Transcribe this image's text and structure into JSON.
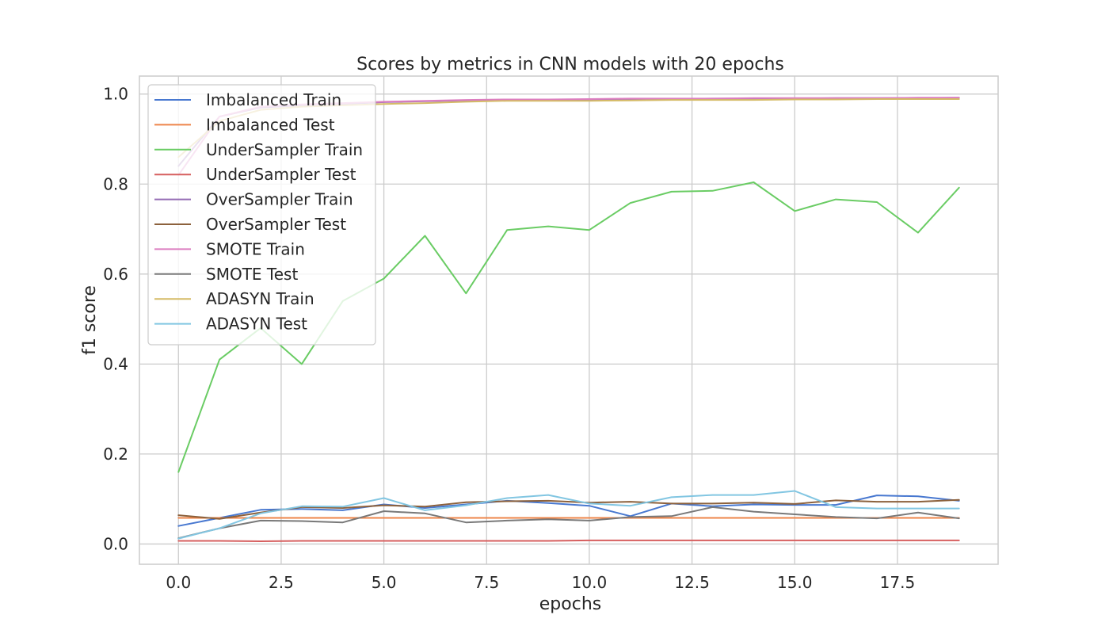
{
  "chart_data": {
    "type": "line",
    "title": "Scores by metrics in CNN models with 20 epochs",
    "xlabel": "epochs",
    "ylabel": "f1 score",
    "xlim": [
      -0.95,
      19.95
    ],
    "ylim": [
      -0.045,
      1.04
    ],
    "xticks": [
      0.0,
      2.5,
      5.0,
      7.5,
      10.0,
      12.5,
      15.0,
      17.5
    ],
    "xtick_labels": [
      "0.0",
      "2.5",
      "5.0",
      "7.5",
      "10.0",
      "12.5",
      "15.0",
      "17.5"
    ],
    "yticks": [
      0.0,
      0.2,
      0.4,
      0.6,
      0.8,
      1.0
    ],
    "ytick_labels": [
      "0.0",
      "0.2",
      "0.4",
      "0.6",
      "0.8",
      "1.0"
    ],
    "grid": true,
    "legend_position": "upper-left",
    "x": [
      0,
      1,
      2,
      3,
      4,
      5,
      6,
      7,
      8,
      9,
      10,
      11,
      12,
      13,
      14,
      15,
      16,
      17,
      18,
      19
    ],
    "series": [
      {
        "name": "Imbalanced Train",
        "color": "#4878d0",
        "values": [
          0.04,
          0.058,
          0.076,
          0.078,
          0.075,
          0.088,
          0.08,
          0.088,
          0.096,
          0.091,
          0.085,
          0.062,
          0.09,
          0.084,
          0.088,
          0.087,
          0.087,
          0.108,
          0.106,
          0.096
        ]
      },
      {
        "name": "Imbalanced Test",
        "color": "#ee854a",
        "values": [
          0.058,
          0.058,
          0.058,
          0.058,
          0.058,
          0.058,
          0.058,
          0.058,
          0.058,
          0.058,
          0.058,
          0.058,
          0.058,
          0.058,
          0.058,
          0.058,
          0.058,
          0.058,
          0.058,
          0.058
        ]
      },
      {
        "name": "UnderSampler Train",
        "color": "#6acc64",
        "values": [
          0.16,
          0.41,
          0.48,
          0.4,
          0.54,
          0.59,
          0.685,
          0.557,
          0.698,
          0.706,
          0.698,
          0.758,
          0.783,
          0.785,
          0.804,
          0.74,
          0.766,
          0.76,
          0.692,
          0.792
        ]
      },
      {
        "name": "UnderSampler Test",
        "color": "#d65f5f",
        "values": [
          0.007,
          0.007,
          0.006,
          0.007,
          0.007,
          0.007,
          0.007,
          0.007,
          0.007,
          0.007,
          0.008,
          0.008,
          0.008,
          0.008,
          0.008,
          0.008,
          0.008,
          0.008,
          0.008,
          0.008
        ]
      },
      {
        "name": "OverSampler Train",
        "color": "#956cb4",
        "values": [
          0.84,
          0.95,
          0.97,
          0.975,
          0.978,
          0.982,
          0.984,
          0.986,
          0.987,
          0.988,
          0.988,
          0.989,
          0.989,
          0.99,
          0.99,
          0.99,
          0.991,
          0.991,
          0.991,
          0.992
        ]
      },
      {
        "name": "OverSampler Test",
        "color": "#8c613c",
        "values": [
          0.064,
          0.056,
          0.07,
          0.082,
          0.08,
          0.086,
          0.083,
          0.093,
          0.095,
          0.096,
          0.092,
          0.094,
          0.09,
          0.09,
          0.092,
          0.089,
          0.097,
          0.094,
          0.094,
          0.098
        ]
      },
      {
        "name": "SMOTE Train",
        "color": "#dc7ec0",
        "values": [
          0.82,
          0.95,
          0.972,
          0.977,
          0.98,
          0.983,
          0.985,
          0.987,
          0.988,
          0.988,
          0.989,
          0.99,
          0.99,
          0.99,
          0.991,
          0.991,
          0.991,
          0.991,
          0.992,
          0.992
        ]
      },
      {
        "name": "SMOTE Test",
        "color": "#797979",
        "values": [
          0.013,
          0.035,
          0.052,
          0.051,
          0.048,
          0.073,
          0.068,
          0.048,
          0.052,
          0.055,
          0.052,
          0.06,
          0.062,
          0.082,
          0.072,
          0.066,
          0.06,
          0.057,
          0.07,
          0.057
        ]
      },
      {
        "name": "ADASYN Train",
        "color": "#d5bb67",
        "values": [
          0.86,
          0.94,
          0.965,
          0.972,
          0.975,
          0.978,
          0.98,
          0.983,
          0.985,
          0.985,
          0.985,
          0.986,
          0.987,
          0.987,
          0.987,
          0.988,
          0.988,
          0.989,
          0.989,
          0.989
        ]
      },
      {
        "name": "ADASYN Test",
        "color": "#82c6e2",
        "values": [
          0.012,
          0.035,
          0.068,
          0.084,
          0.083,
          0.102,
          0.075,
          0.086,
          0.102,
          0.109,
          0.09,
          0.085,
          0.104,
          0.109,
          0.109,
          0.118,
          0.082,
          0.079,
          0.079,
          0.079
        ]
      }
    ]
  }
}
